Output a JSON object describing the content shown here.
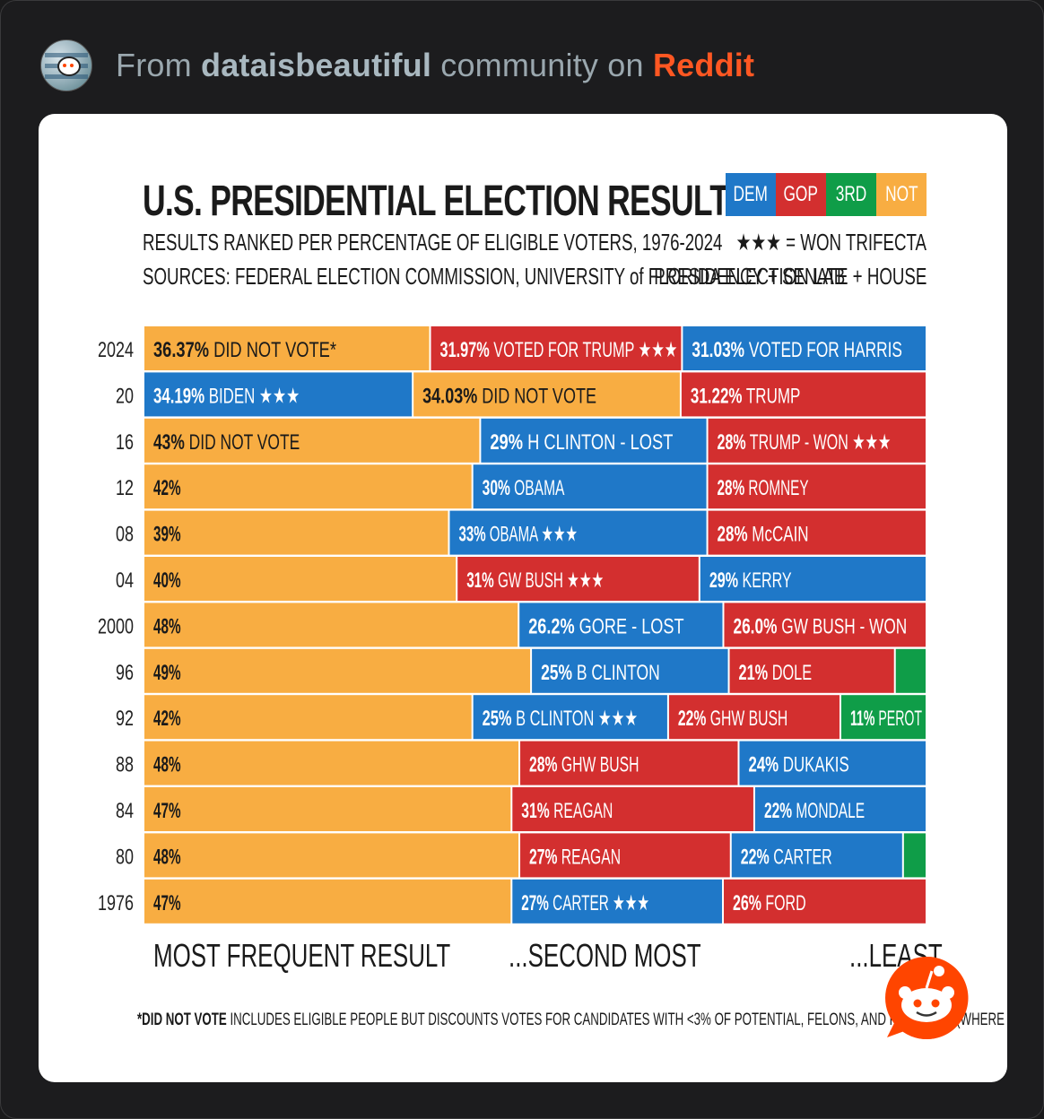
{
  "header": {
    "prefix": "From",
    "community": "dataisbeautiful",
    "middle": "community on",
    "platform": "Reddit"
  },
  "chart": {
    "title": "U.S. PRESIDENTIAL ELECTION RESULTS",
    "subtitle": "RESULTS RANKED PER PERCENTAGE OF ELIGIBLE VOTERS, 1976-2024",
    "sources": "SOURCES: FEDERAL ELECTION COMMISSION, UNIVERSITY of FLORIDA ELECTION LAB",
    "legend": [
      {
        "label": "DEM",
        "color": "#1f78c8"
      },
      {
        "label": "GOP",
        "color": "#d32f2f"
      },
      {
        "label": "3RD",
        "color": "#0f9d48"
      },
      {
        "label": "NOT",
        "color": "#f8ad42"
      }
    ],
    "trifecta_note": "★★★ = WON TRIFECTA",
    "trifecta_detail": "PRESIDENCY + SENATE + HOUSE",
    "bottom_labels": {
      "first": "MOST FREQUENT RESULT",
      "second": "...SECOND MOST",
      "least": "...LEAST"
    },
    "footnote_bold": "*DID NOT VOTE",
    "footnote_rest": " INCLUDES ELIGIBLE PEOPLE BUT DISCOUNTS VOTES FOR CANDIDATES WITH <3% OF POTENTIAL, FELONS, AND PAROLEES (WHERE APPLICABLE)."
  },
  "chart_data": {
    "type": "bar",
    "orientation": "horizontal-stacked-100",
    "title": "U.S. PRESIDENTIAL ELECTION RESULTS",
    "xlabel": "",
    "ylabel": "",
    "colors": {
      "dem": "#1f78c8",
      "gop": "#d32f2f",
      "third": "#0f9d48",
      "not": "#f8ad42"
    },
    "rows": [
      {
        "year": "2024",
        "segments": [
          {
            "party": "not",
            "value": 36.37,
            "pct": "36.37%",
            "text": "DID NOT VOTE*"
          },
          {
            "party": "gop",
            "value": 31.97,
            "pct": "31.97%",
            "text": "VOTED FOR TRUMP ★★★"
          },
          {
            "party": "dem",
            "value": 31.03,
            "pct": "31.03%",
            "text": "VOTED FOR HARRIS"
          }
        ]
      },
      {
        "year": "20",
        "segments": [
          {
            "party": "dem",
            "value": 34.19,
            "pct": "34.19%",
            "text": "BIDEN ★★★"
          },
          {
            "party": "not",
            "value": 34.03,
            "pct": "34.03%",
            "text": "DID NOT VOTE"
          },
          {
            "party": "gop",
            "value": 31.22,
            "pct": "31.22%",
            "text": "TRUMP"
          }
        ]
      },
      {
        "year": "16",
        "segments": [
          {
            "party": "not",
            "value": 43,
            "pct": "43%",
            "text": "DID NOT VOTE"
          },
          {
            "party": "dem",
            "value": 29,
            "pct": "29%",
            "text": "H CLINTON - LOST"
          },
          {
            "party": "gop",
            "value": 28,
            "pct": "28%",
            "text": "TRUMP - WON ★★★"
          }
        ]
      },
      {
        "year": "12",
        "segments": [
          {
            "party": "not",
            "value": 42,
            "pct": "42%",
            "text": ""
          },
          {
            "party": "dem",
            "value": 30,
            "pct": "30%",
            "text": "OBAMA"
          },
          {
            "party": "gop",
            "value": 28,
            "pct": "28%",
            "text": "ROMNEY"
          }
        ]
      },
      {
        "year": "08",
        "segments": [
          {
            "party": "not",
            "value": 39,
            "pct": "39%",
            "text": ""
          },
          {
            "party": "dem",
            "value": 33,
            "pct": "33%",
            "text": "OBAMA ★★★"
          },
          {
            "party": "gop",
            "value": 28,
            "pct": "28%",
            "text": "McCAIN"
          }
        ]
      },
      {
        "year": "04",
        "segments": [
          {
            "party": "not",
            "value": 40,
            "pct": "40%",
            "text": ""
          },
          {
            "party": "gop",
            "value": 31,
            "pct": "31%",
            "text": "GW BUSH ★★★"
          },
          {
            "party": "dem",
            "value": 29,
            "pct": "29%",
            "text": "KERRY"
          }
        ]
      },
      {
        "year": "2000",
        "segments": [
          {
            "party": "not",
            "value": 48,
            "pct": "48%",
            "text": ""
          },
          {
            "party": "dem",
            "value": 26.2,
            "pct": "26.2%",
            "text": "GORE - LOST"
          },
          {
            "party": "gop",
            "value": 26.0,
            "pct": "26.0%",
            "text": "GW BUSH - WON"
          }
        ]
      },
      {
        "year": "96",
        "segments": [
          {
            "party": "not",
            "value": 49,
            "pct": "49%",
            "text": ""
          },
          {
            "party": "dem",
            "value": 25,
            "pct": "25%",
            "text": "B CLINTON"
          },
          {
            "party": "gop",
            "value": 21,
            "pct": "21%",
            "text": "DOLE"
          },
          {
            "party": "third",
            "value": 4,
            "pct": "",
            "text": ""
          }
        ]
      },
      {
        "year": "92",
        "segments": [
          {
            "party": "not",
            "value": 42,
            "pct": "42%",
            "text": ""
          },
          {
            "party": "dem",
            "value": 25,
            "pct": "25%",
            "text": "B CLINTON ★★★"
          },
          {
            "party": "gop",
            "value": 22,
            "pct": "22%",
            "text": "GHW BUSH"
          },
          {
            "party": "third",
            "value": 11,
            "pct": "11%",
            "text": "PEROT"
          }
        ]
      },
      {
        "year": "88",
        "segments": [
          {
            "party": "not",
            "value": 48,
            "pct": "48%",
            "text": ""
          },
          {
            "party": "gop",
            "value": 28,
            "pct": "28%",
            "text": "GHW BUSH"
          },
          {
            "party": "dem",
            "value": 24,
            "pct": "24%",
            "text": "DUKAKIS"
          }
        ]
      },
      {
        "year": "84",
        "segments": [
          {
            "party": "not",
            "value": 47,
            "pct": "47%",
            "text": ""
          },
          {
            "party": "gop",
            "value": 31,
            "pct": "31%",
            "text": "REAGAN"
          },
          {
            "party": "dem",
            "value": 22,
            "pct": "22%",
            "text": "MONDALE"
          }
        ]
      },
      {
        "year": "80",
        "segments": [
          {
            "party": "not",
            "value": 48,
            "pct": "48%",
            "text": ""
          },
          {
            "party": "gop",
            "value": 27,
            "pct": "27%",
            "text": "REAGAN"
          },
          {
            "party": "dem",
            "value": 22,
            "pct": "22%",
            "text": "CARTER"
          },
          {
            "party": "third",
            "value": 3,
            "pct": "",
            "text": ""
          }
        ]
      },
      {
        "year": "1976",
        "segments": [
          {
            "party": "not",
            "value": 47,
            "pct": "47%",
            "text": ""
          },
          {
            "party": "dem",
            "value": 27,
            "pct": "27%",
            "text": "CARTER ★★★"
          },
          {
            "party": "gop",
            "value": 26,
            "pct": "26%",
            "text": "FORD"
          }
        ]
      }
    ]
  }
}
